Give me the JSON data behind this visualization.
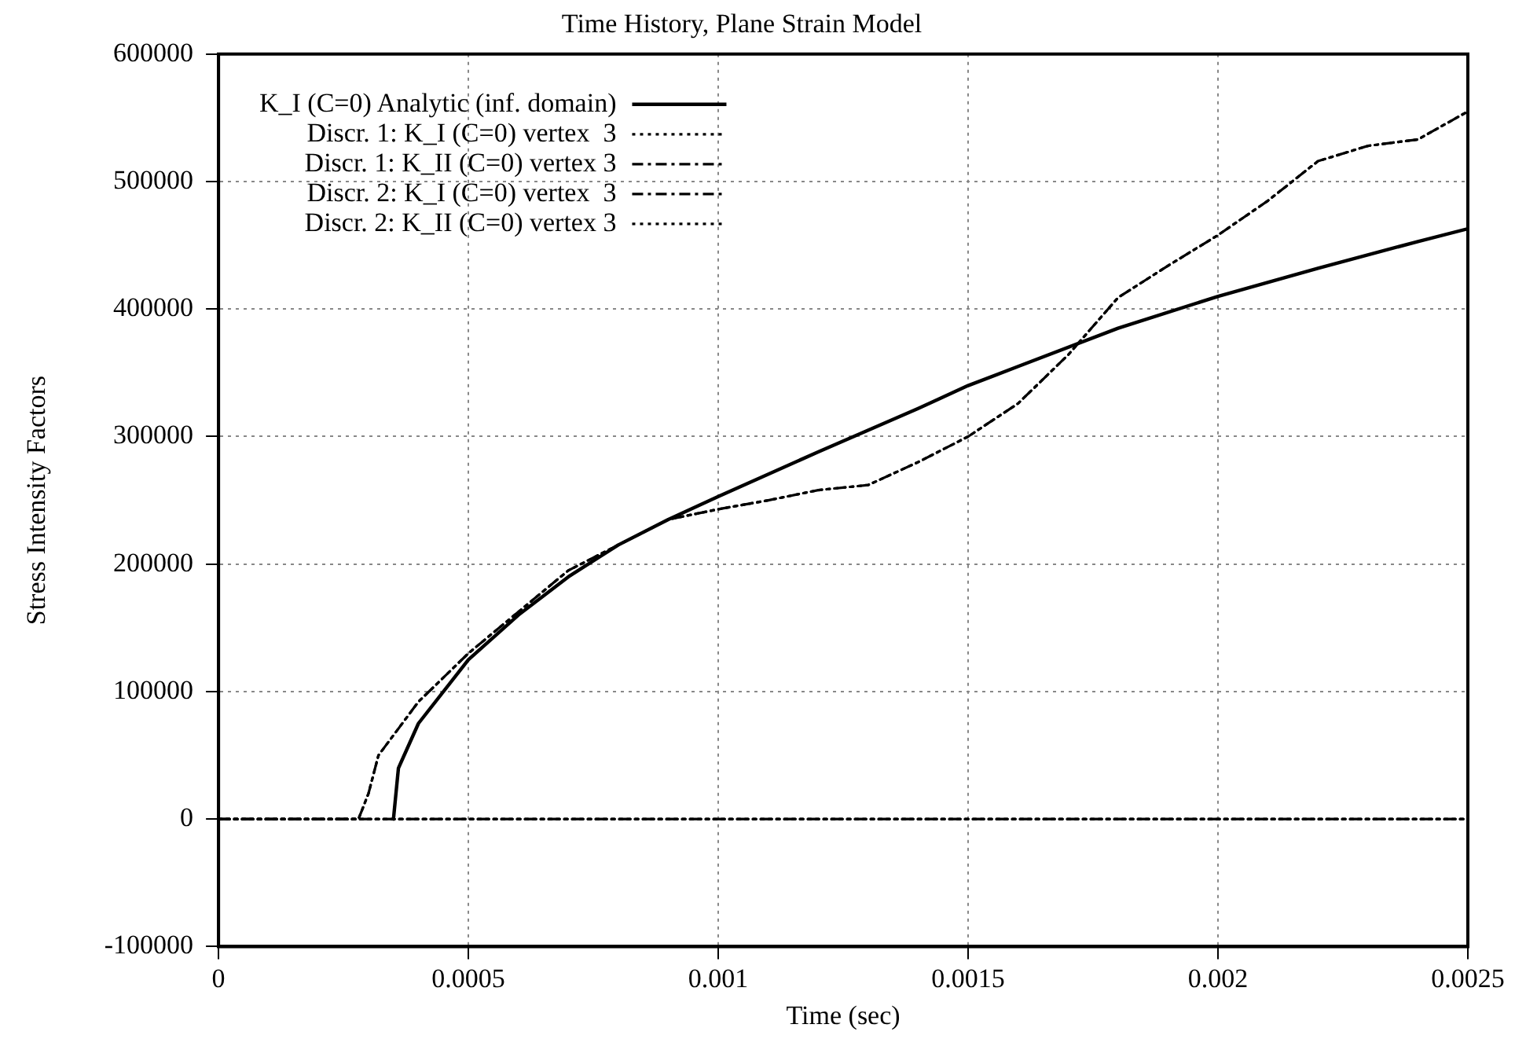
{
  "chart_data": {
    "type": "line",
    "title": "Time History, Plane Strain Model",
    "xlabel": "Time (sec)",
    "ylabel": "Stress Intensity Factors",
    "xlim": [
      0,
      0.0025
    ],
    "xticks": [
      0,
      0.0005,
      0.001,
      0.0015,
      0.002,
      0.0025
    ],
    "ylim": [
      -100000,
      600000
    ],
    "yticks": [
      -100000,
      0,
      100000,
      200000,
      300000,
      400000,
      500000,
      600000
    ],
    "grid": true,
    "legend": "top left",
    "marker": "none",
    "series": [
      {
        "name": "K_I (C=0) Analytic (inf. domain)",
        "color": "#000000",
        "line_style": "solid",
        "x": [
          0.00035,
          0.00036,
          0.0004,
          0.0005,
          0.0006,
          0.0007,
          0.0008,
          0.0009,
          0.001,
          0.0012,
          0.0014,
          0.0015,
          0.0016,
          0.0018,
          0.002,
          0.0022,
          0.0024,
          0.0025
        ],
        "values": [
          0,
          40000,
          75000,
          125000,
          160000,
          190000,
          215000,
          235000,
          253000,
          288000,
          322000,
          340000,
          355000,
          385000,
          410000,
          432000,
          453000,
          463000
        ]
      },
      {
        "name": "Discr. 1: K_I (C=0) vertex  3",
        "color": "#000000",
        "line_style": "dotted",
        "x": [
          0,
          0.00028,
          0.0003,
          0.00032,
          0.0004,
          0.0005,
          0.0007,
          0.0009,
          0.001,
          0.0011,
          0.0012,
          0.0013,
          0.0014,
          0.0015,
          0.0016,
          0.0017,
          0.0018,
          0.0019,
          0.002,
          0.0021,
          0.0022,
          0.0023,
          0.0024,
          0.0025
        ],
        "values": [
          0,
          0,
          20000,
          50000,
          92000,
          130000,
          195000,
          235000,
          243000,
          250000,
          258000,
          262000,
          280000,
          300000,
          326000,
          364000,
          409000,
          434000,
          458000,
          485000,
          516000,
          528000,
          533000,
          555000
        ]
      },
      {
        "name": "Discr. 1: K_II (C=0) vertex 3",
        "color": "#000000",
        "line_style": "dashed",
        "x": [
          0,
          0.0005,
          0.001,
          0.0015,
          0.002,
          0.0025
        ],
        "values": [
          0,
          0,
          0,
          0,
          0,
          0
        ]
      },
      {
        "name": "Discr. 2: K_I (C=0) vertex  3",
        "color": "#000000",
        "line_style": "dashed",
        "x": [
          0,
          0.00028,
          0.0003,
          0.00032,
          0.0004,
          0.0005,
          0.0007,
          0.0009,
          0.001,
          0.0011,
          0.0012,
          0.0013,
          0.0014,
          0.0015,
          0.0016,
          0.0017,
          0.0018,
          0.0019,
          0.002,
          0.0021,
          0.0022,
          0.0023,
          0.0024,
          0.0025
        ],
        "values": [
          0,
          0,
          20000,
          50000,
          92000,
          130000,
          195000,
          235000,
          243000,
          250000,
          258000,
          262000,
          280000,
          300000,
          326000,
          364000,
          409000,
          434000,
          458000,
          485000,
          516000,
          528000,
          533000,
          555000
        ]
      },
      {
        "name": "Discr. 2: K_II (C=0) vertex 3",
        "color": "#000000",
        "line_style": "dotted",
        "x": [
          0,
          0.0005,
          0.001,
          0.0015,
          0.002,
          0.0025
        ],
        "values": [
          0,
          0,
          0,
          0,
          0,
          0
        ]
      }
    ]
  }
}
